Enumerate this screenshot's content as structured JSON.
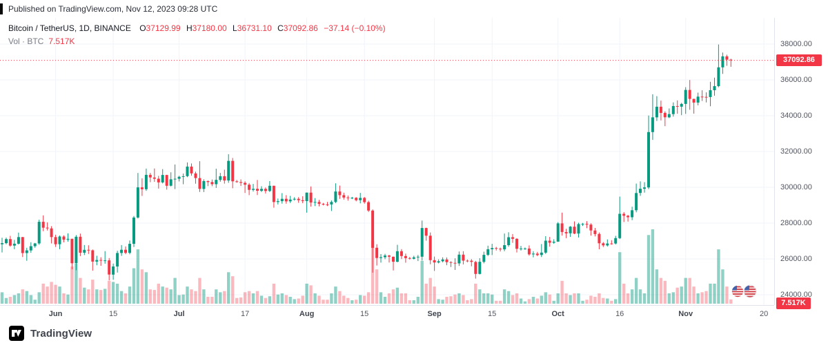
{
  "published_bar": {
    "text": "Published on TradingView.com, Nov 12, 2023 09:28 UTC"
  },
  "legend": {
    "title": "Bitcoin / TetherUS, 1D, BINANCE",
    "o_label": "O",
    "o_value": "37129.99",
    "h_label": "H",
    "h_value": "37180.00",
    "l_label": "L",
    "l_value": "36731.10",
    "c_label": "C",
    "c_value": "37092.86",
    "change": "−37.14 (−0.10%)",
    "vol_label": "Vol · BTC",
    "vol_value": "7.517K"
  },
  "price_axis": {
    "last_price_label": "37092.86",
    "volume_badge": "7.517K"
  },
  "footer": {
    "brand": "TradingView"
  },
  "colors": {
    "up": "#089981",
    "down": "#f23645",
    "vol_up": "rgba(8,153,129,0.45)",
    "vol_down": "rgba(242,54,69,0.35)",
    "grid": "#f0f3fa",
    "last_price_line": "#f23645",
    "badge_bg": "#f23645",
    "axis_text": "#51545f",
    "legend_text": "#131722"
  },
  "chart_data": {
    "type": "candlestick+volume",
    "title": "Bitcoin / TetherUS, 1D, BINANCE",
    "exchange": "BINANCE",
    "interval": "1D",
    "last_price": 37092.86,
    "last_volume_k": 7.517,
    "current_ohlc": {
      "open": 37129.99,
      "high": 37180.0,
      "low": 36731.1,
      "close": 37092.86,
      "change": -37.14,
      "change_pct": -0.1
    },
    "price_ticks": [
      {
        "label": "38000.00",
        "value": 38000
      },
      {
        "label": "36000.00",
        "value": 36000
      },
      {
        "label": "34000.00",
        "value": 34000
      },
      {
        "label": "32000.00",
        "value": 32000
      },
      {
        "label": "30000.00",
        "value": 30000
      },
      {
        "label": "28000.00",
        "value": 28000
      },
      {
        "label": "26000.00",
        "value": 26000
      },
      {
        "label": "24000.00",
        "value": 24000
      }
    ],
    "time_ticks": [
      {
        "label": "Jun",
        "index": 13,
        "major": true
      },
      {
        "label": "15",
        "index": 27,
        "major": false
      },
      {
        "label": "Jul",
        "index": 43,
        "major": true
      },
      {
        "label": "17",
        "index": 59,
        "major": false
      },
      {
        "label": "Aug",
        "index": 74,
        "major": true
      },
      {
        "label": "15",
        "index": 88,
        "major": false
      },
      {
        "label": "Sep",
        "index": 105,
        "major": true
      },
      {
        "label": "15",
        "index": 119,
        "major": false
      },
      {
        "label": "Oct",
        "index": 135,
        "major": true
      },
      {
        "label": "16",
        "index": 150,
        "major": false
      },
      {
        "label": "Nov",
        "index": 166,
        "major": true
      },
      {
        "label": "20",
        "index": 185,
        "major": false
      }
    ],
    "total_slots": 188,
    "ylim": [
      23800,
      38800
    ],
    "grid": true,
    "candles_format": [
      "open",
      "high",
      "low",
      "close",
      "volume_k"
    ],
    "candles": [
      [
        26820,
        27180,
        26361,
        26882,
        20
      ],
      [
        26882,
        27191,
        26820,
        27109,
        10
      ],
      [
        27109,
        27290,
        26680,
        26744,
        12
      ],
      [
        26744,
        27063,
        26542,
        26851,
        15
      ],
      [
        26851,
        27470,
        26805,
        27219,
        18
      ],
      [
        27219,
        27227,
        26105,
        26326,
        25
      ],
      [
        26326,
        26624,
        25898,
        26476,
        22
      ],
      [
        26476,
        26931,
        26342,
        26713,
        15
      ],
      [
        26713,
        26897,
        26623,
        26866,
        7
      ],
      [
        26866,
        28193,
        26792,
        28075,
        20
      ],
      [
        28075,
        28432,
        27550,
        27745,
        35
      ],
      [
        27745,
        28044,
        27588,
        27702,
        30
      ],
      [
        27702,
        27832,
        26866,
        27219,
        38
      ],
      [
        27219,
        27350,
        26671,
        26819,
        33
      ],
      [
        26819,
        27308,
        26541,
        27249,
        30
      ],
      [
        27249,
        27317,
        26926,
        27075,
        18
      ],
      [
        27075,
        27425,
        26965,
        27125,
        16
      ],
      [
        27125,
        27129,
        25421,
        25760,
        65
      ],
      [
        25760,
        27330,
        25370,
        27238,
        70
      ],
      [
        27238,
        27416,
        26156,
        26345,
        45
      ],
      [
        26345,
        26777,
        26214,
        26508,
        28
      ],
      [
        26508,
        26762,
        26278,
        26480,
        25
      ],
      [
        26480,
        26527,
        25343,
        25851,
        42
      ],
      [
        25851,
        26176,
        25648,
        25940,
        25
      ],
      [
        25940,
        26093,
        25616,
        25902,
        24
      ],
      [
        25902,
        26434,
        25736,
        25918,
        26
      ],
      [
        25918,
        26047,
        24801,
        25124,
        40
      ],
      [
        25124,
        25738,
        24838,
        25576,
        38
      ],
      [
        25576,
        26459,
        25237,
        26329,
        35
      ],
      [
        26329,
        26774,
        26170,
        26510,
        22
      ],
      [
        26510,
        26696,
        26266,
        26336,
        18
      ],
      [
        26336,
        27025,
        26262,
        26841,
        30
      ],
      [
        26841,
        28396,
        26662,
        28311,
        62
      ],
      [
        28311,
        30800,
        28257,
        29995,
        95
      ],
      [
        29995,
        30500,
        29520,
        29893,
        60
      ],
      [
        29893,
        31045,
        29800,
        30695,
        55
      ],
      [
        30695,
        30804,
        30287,
        30548,
        25
      ],
      [
        30548,
        31051,
        30303,
        30480,
        24
      ],
      [
        30480,
        30640,
        29930,
        30271,
        35
      ],
      [
        30271,
        31016,
        30216,
        30688,
        30
      ],
      [
        30688,
        30700,
        29870,
        30086,
        28
      ],
      [
        30086,
        30838,
        30047,
        30445,
        25
      ],
      [
        30445,
        31274,
        29900,
        30477,
        45
      ],
      [
        30477,
        30644,
        30328,
        30590,
        15
      ],
      [
        30590,
        30771,
        30170,
        30620,
        16
      ],
      [
        30620,
        31389,
        30571,
        31156,
        30
      ],
      [
        31156,
        31331,
        30650,
        30777,
        25
      ],
      [
        30777,
        30877,
        30205,
        30514,
        22
      ],
      [
        30514,
        31458,
        29741,
        29909,
        45
      ],
      [
        29909,
        30447,
        29736,
        30347,
        25
      ],
      [
        30347,
        30388,
        30066,
        30292,
        12
      ],
      [
        30292,
        30436,
        30062,
        30171,
        12
      ],
      [
        30171,
        31040,
        29964,
        30414,
        25
      ],
      [
        30414,
        30804,
        30311,
        30620,
        20
      ],
      [
        30620,
        30985,
        30203,
        30380,
        22
      ],
      [
        30380,
        31850,
        30251,
        31476,
        55
      ],
      [
        31476,
        31640,
        29945,
        30335,
        48
      ],
      [
        30335,
        30410,
        30253,
        30294,
        10
      ],
      [
        30294,
        30442,
        30074,
        30249,
        11
      ],
      [
        30249,
        30340,
        29685,
        30145,
        20
      ],
      [
        30145,
        30239,
        29560,
        29856,
        22
      ],
      [
        29856,
        30187,
        29764,
        29915,
        18
      ],
      [
        29915,
        30409,
        29570,
        29807,
        22
      ],
      [
        29807,
        30057,
        29743,
        29913,
        14
      ],
      [
        29913,
        29993,
        29650,
        29795,
        10
      ],
      [
        29795,
        30345,
        29737,
        30085,
        13
      ],
      [
        30085,
        30094,
        28861,
        29177,
        35
      ],
      [
        29177,
        29373,
        29043,
        29227,
        16
      ],
      [
        29227,
        29676,
        29090,
        29356,
        18
      ],
      [
        29356,
        29561,
        29086,
        29215,
        15
      ],
      [
        29215,
        29525,
        29124,
        29315,
        12
      ],
      [
        29315,
        29447,
        29256,
        29356,
        8
      ],
      [
        29356,
        29449,
        29133,
        29278,
        9
      ],
      [
        29278,
        29500,
        29110,
        29230,
        14
      ],
      [
        29230,
        29709,
        28585,
        29705,
        35
      ],
      [
        29705,
        30047,
        28921,
        29153,
        32
      ],
      [
        29153,
        29397,
        28951,
        29179,
        18
      ],
      [
        29179,
        29300,
        28937,
        29074,
        14
      ],
      [
        29074,
        29125,
        28990,
        29042,
        7
      ],
      [
        29042,
        29184,
        28955,
        29041,
        7
      ],
      [
        29041,
        29270,
        28678,
        29180,
        18
      ],
      [
        29180,
        30222,
        29116,
        29765,
        30
      ],
      [
        29765,
        30097,
        29354,
        29563,
        22
      ],
      [
        29563,
        29700,
        29316,
        29429,
        14
      ],
      [
        29429,
        29543,
        29253,
        29397,
        10
      ],
      [
        29397,
        29465,
        29338,
        29417,
        6
      ],
      [
        29417,
        29451,
        29216,
        29283,
        7
      ],
      [
        29283,
        29688,
        29102,
        29408,
        15
      ],
      [
        29408,
        29461,
        29085,
        29170,
        14
      ],
      [
        29170,
        29249,
        28624,
        28701,
        20
      ],
      [
        28701,
        28766,
        25234,
        26622,
        110
      ],
      [
        26622,
        26820,
        25629,
        26049,
        60
      ],
      [
        26049,
        26268,
        25792,
        26096,
        20
      ],
      [
        26096,
        26284,
        25984,
        26189,
        12
      ],
      [
        26189,
        26226,
        25800,
        26124,
        18
      ],
      [
        26124,
        26134,
        25356,
        25842,
        25
      ],
      [
        25842,
        26787,
        25811,
        26431,
        28
      ],
      [
        26431,
        26546,
        25993,
        26163,
        18
      ],
      [
        26163,
        26296,
        25787,
        26047,
        18
      ],
      [
        26047,
        26110,
        25964,
        26009,
        6
      ],
      [
        26009,
        26176,
        25971,
        26089,
        6
      ],
      [
        26089,
        26220,
        25880,
        26122,
        12
      ],
      [
        26122,
        28142,
        25915,
        27727,
        75
      ],
      [
        27727,
        27747,
        27020,
        27297,
        35
      ],
      [
        27297,
        27477,
        25699,
        25932,
        45
      ],
      [
        25932,
        26131,
        25332,
        25800,
        30
      ],
      [
        25800,
        25976,
        25751,
        25869,
        8
      ],
      [
        25869,
        26090,
        25809,
        25969,
        7
      ],
      [
        25969,
        26080,
        25651,
        25818,
        12
      ],
      [
        25818,
        25869,
        25551,
        25780,
        13
      ],
      [
        25780,
        26035,
        25385,
        25753,
        16
      ],
      [
        25753,
        26415,
        25609,
        26240,
        18
      ],
      [
        26240,
        26430,
        25692,
        25905,
        15
      ],
      [
        25905,
        25971,
        25811,
        25899,
        6
      ],
      [
        25899,
        25988,
        25589,
        25832,
        8
      ],
      [
        25832,
        25891,
        24901,
        25162,
        35
      ],
      [
        25162,
        26038,
        25133,
        25837,
        25
      ],
      [
        25837,
        26402,
        25755,
        26228,
        18
      ],
      [
        26228,
        26739,
        26161,
        26539,
        18
      ],
      [
        26539,
        26843,
        26216,
        26608,
        16
      ],
      [
        26608,
        26674,
        26471,
        26568,
        5
      ],
      [
        26568,
        26630,
        26416,
        26534,
        5
      ],
      [
        26534,
        27419,
        26432,
        26770,
        25
      ],
      [
        26770,
        27489,
        26681,
        27211,
        22
      ],
      [
        27211,
        27388,
        26901,
        27124,
        15
      ],
      [
        27124,
        27159,
        26362,
        26567,
        18
      ],
      [
        26567,
        26728,
        26464,
        26579,
        9
      ],
      [
        26579,
        26638,
        26510,
        26580,
        4
      ],
      [
        26580,
        26755,
        26180,
        26252,
        8
      ],
      [
        26252,
        26430,
        26087,
        26296,
        12
      ],
      [
        26296,
        26391,
        26154,
        26216,
        9
      ],
      [
        26216,
        26831,
        26105,
        26352,
        14
      ],
      [
        26352,
        27270,
        26281,
        27021,
        20
      ],
      [
        27021,
        27226,
        26684,
        26907,
        16
      ],
      [
        26907,
        27097,
        26844,
        26962,
        5
      ],
      [
        26962,
        28053,
        26952,
        27983,
        18
      ],
      [
        27983,
        28583,
        27303,
        27501,
        40
      ],
      [
        27501,
        27680,
        27163,
        27429,
        18
      ],
      [
        27429,
        27836,
        27226,
        27799,
        15
      ],
      [
        27799,
        28096,
        27383,
        27415,
        18
      ],
      [
        27415,
        28021,
        27196,
        27946,
        18
      ],
      [
        27946,
        28006,
        27843,
        27957,
        5
      ],
      [
        27957,
        28107,
        27716,
        27917,
        7
      ],
      [
        27917,
        27989,
        27301,
        27590,
        14
      ],
      [
        27590,
        27729,
        27259,
        27391,
        12
      ],
      [
        27391,
        27478,
        26539,
        26873,
        18
      ],
      [
        26873,
        26944,
        26667,
        26756,
        10
      ],
      [
        26756,
        27089,
        26692,
        26862,
        9
      ],
      [
        26862,
        27045,
        26795,
        26861,
        5
      ],
      [
        26861,
        27290,
        26807,
        27161,
        8
      ],
      [
        27161,
        29482,
        27110,
        28519,
        90
      ],
      [
        28519,
        28617,
        28061,
        28413,
        35
      ],
      [
        28413,
        28458,
        28085,
        28328,
        18
      ],
      [
        28328,
        28916,
        28166,
        28719,
        25
      ],
      [
        28719,
        30207,
        28605,
        29682,
        45
      ],
      [
        29682,
        30329,
        29524,
        29918,
        25
      ],
      [
        29918,
        30288,
        29702,
        29993,
        18
      ],
      [
        29993,
        34012,
        29900,
        33086,
        120
      ],
      [
        33086,
        35198,
        32650,
        33909,
        130
      ],
      [
        33909,
        35092,
        33703,
        34501,
        60
      ],
      [
        34501,
        34841,
        33734,
        34156,
        45
      ],
      [
        34156,
        34245,
        33417,
        33909,
        40
      ],
      [
        33909,
        34405,
        33866,
        34089,
        18
      ],
      [
        34089,
        34743,
        33949,
        34538,
        20
      ],
      [
        34538,
        34852,
        34107,
        34502,
        28
      ],
      [
        34502,
        34719,
        34029,
        34657,
        30
      ],
      [
        34657,
        35594,
        34101,
        35437,
        45
      ],
      [
        35437,
        35993,
        34331,
        34938,
        45
      ],
      [
        34938,
        34945,
        34117,
        34732,
        30
      ],
      [
        34732,
        35287,
        34576,
        35065,
        18
      ],
      [
        35065,
        35420,
        34822,
        35049,
        20
      ],
      [
        35049,
        35302,
        34741,
        35046,
        22
      ],
      [
        35046,
        35896,
        34527,
        35425,
        35
      ],
      [
        35425,
        36123,
        35117,
        35651,
        35
      ],
      [
        35651,
        37978,
        35588,
        36701,
        95
      ],
      [
        36701,
        37526,
        36333,
        37315,
        60
      ],
      [
        37315,
        37408,
        36783,
        37130,
        30
      ],
      [
        37129.99,
        37180,
        36731.1,
        37092.86,
        7.517
      ]
    ]
  }
}
